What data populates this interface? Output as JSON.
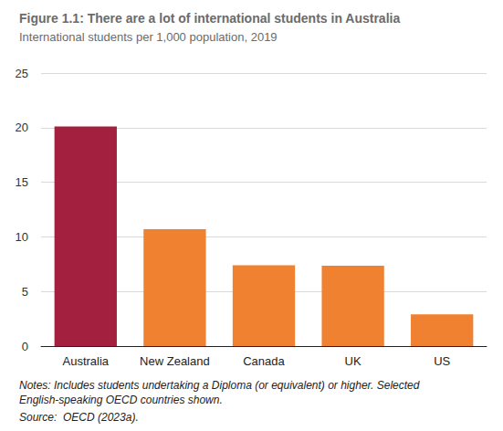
{
  "chart_data": {
    "type": "bar",
    "title": "Figure 1.1: There are a lot of international students in Australia",
    "subtitle": "International students per 1,000 population, 2019",
    "categories": [
      "Australia",
      "New Zealand",
      "Canada",
      "UK",
      "US"
    ],
    "values": [
      20.1,
      10.7,
      7.4,
      7.35,
      2.9
    ],
    "colors": [
      "#a3213e",
      "#f08131",
      "#f08131",
      "#f08131",
      "#f08131"
    ],
    "ylim": [
      0,
      25
    ],
    "yticks": [
      0,
      5,
      10,
      15,
      20,
      25
    ],
    "grid": true,
    "notes": "Notes: Includes students undertaking a Diploma (or equivalent) or higher. Selected English-speaking OECD countries shown.",
    "source": "Source:  OECD (2023a)."
  }
}
